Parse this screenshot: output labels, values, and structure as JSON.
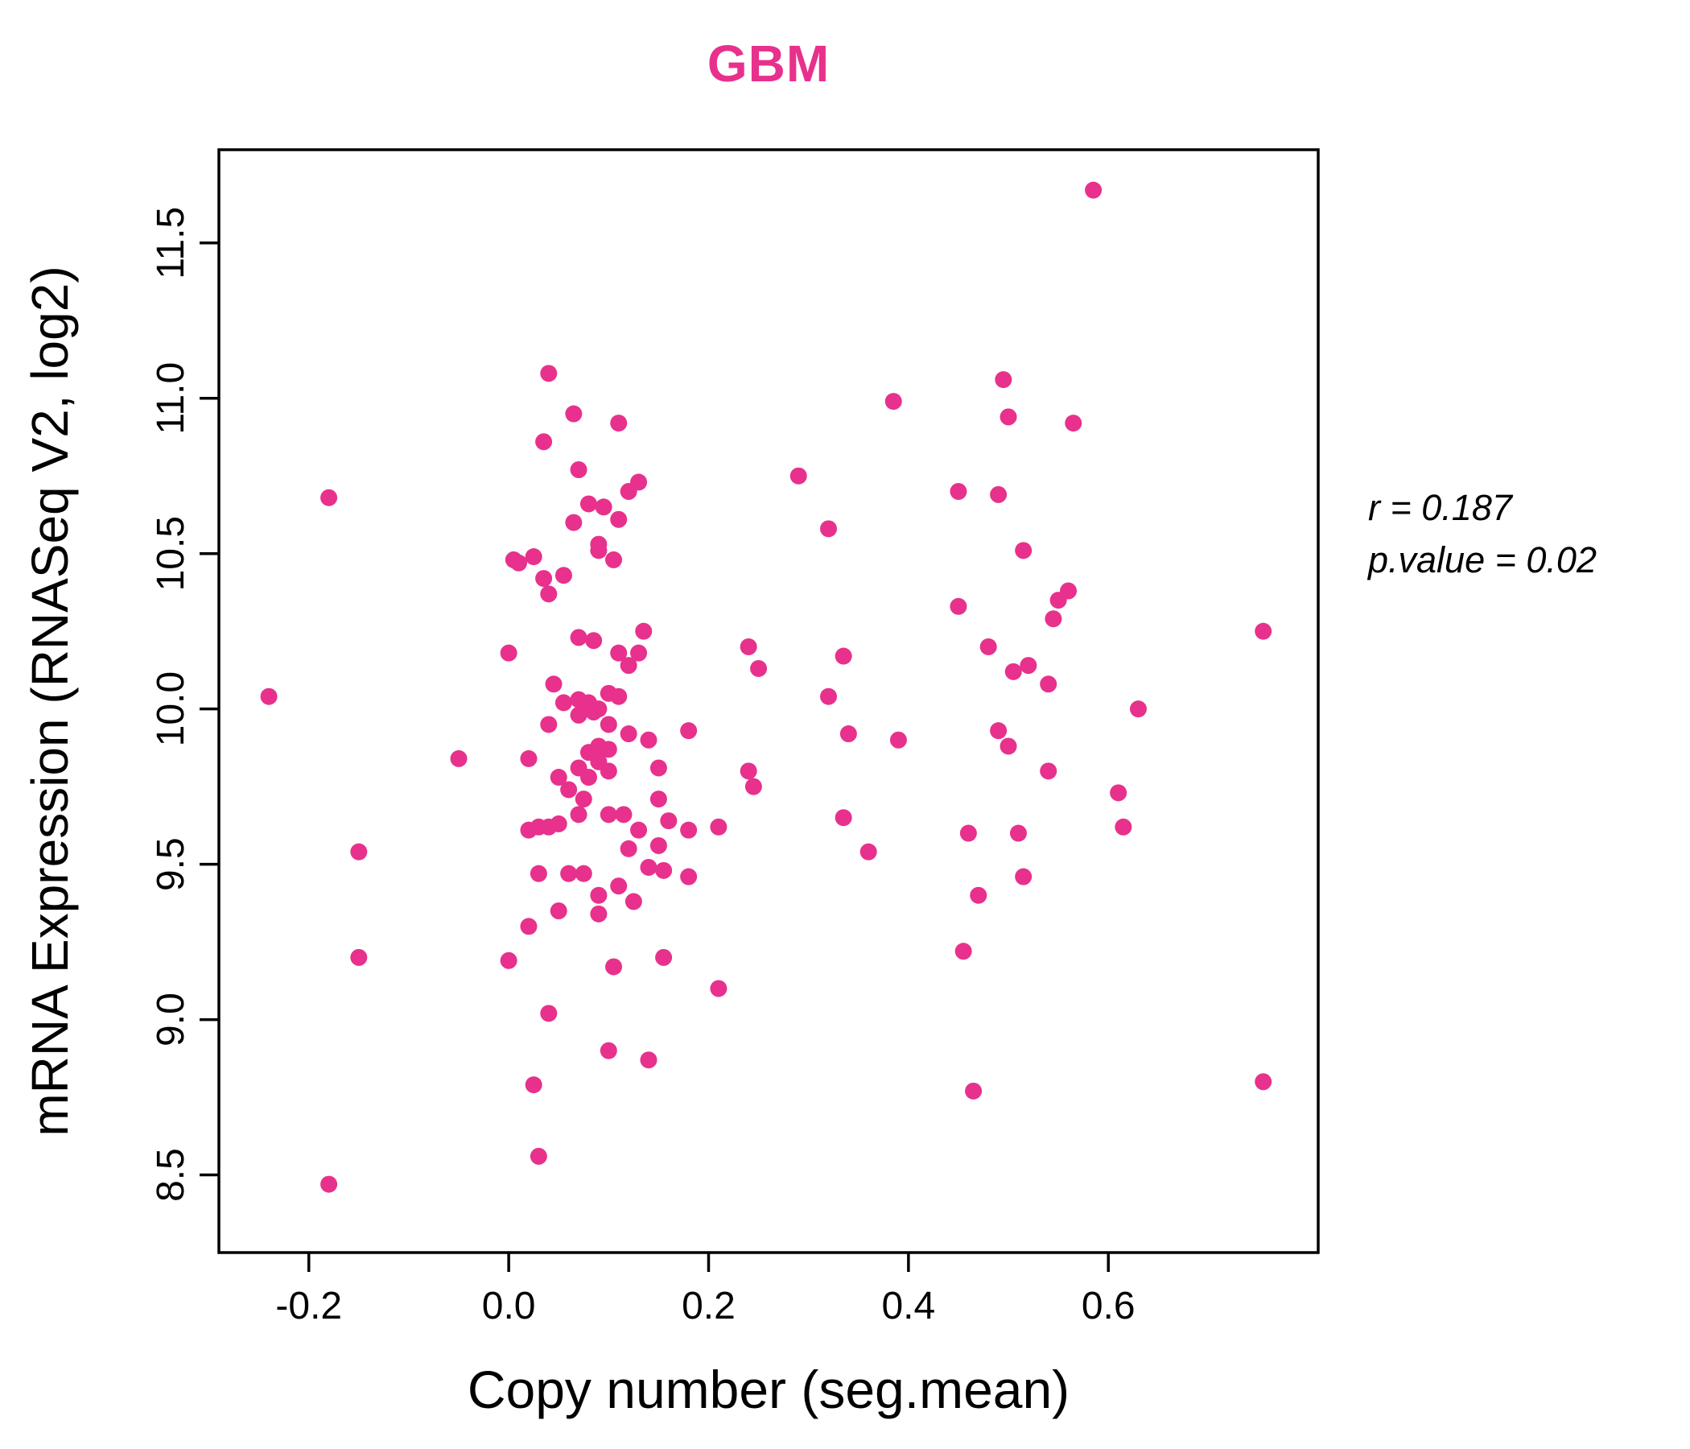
{
  "colors": {
    "accent": "#E7318C",
    "point": "#E7318C",
    "axis": "#000000"
  },
  "chart_data": {
    "type": "scatter",
    "title": "GBM",
    "xlabel": "Copy number (seg.mean)",
    "ylabel": "mRNA Expression (RNASeq V2, log2)",
    "xlim": [
      -0.29,
      0.81
    ],
    "ylim": [
      8.25,
      11.8
    ],
    "xtick_values": [
      -0.2,
      0.0,
      0.2,
      0.4,
      0.6
    ],
    "xtick_labels": [
      "-0.2",
      "0.0",
      "0.2",
      "0.4",
      "0.6"
    ],
    "ytick_values": [
      8.5,
      9.0,
      9.5,
      10.0,
      10.5,
      11.0,
      11.5
    ],
    "ytick_labels": [
      "8.5",
      "9.0",
      "9.5",
      "10.0",
      "10.5",
      "11.0",
      "11.5"
    ],
    "grid": false,
    "legend": "none",
    "annotation": [
      "r = 0.187",
      "p.value = 0.02"
    ],
    "points": [
      [
        -0.24,
        10.04
      ],
      [
        -0.18,
        10.68
      ],
      [
        -0.18,
        8.47
      ],
      [
        -0.15,
        9.54
      ],
      [
        -0.15,
        9.2
      ],
      [
        -0.05,
        9.84
      ],
      [
        0.0,
        9.19
      ],
      [
        0.0,
        10.18
      ],
      [
        0.005,
        10.48
      ],
      [
        0.01,
        10.47
      ],
      [
        0.02,
        9.84
      ],
      [
        0.02,
        9.61
      ],
      [
        0.02,
        9.3
      ],
      [
        0.025,
        8.79
      ],
      [
        0.025,
        10.49
      ],
      [
        0.03,
        9.47
      ],
      [
        0.03,
        9.62
      ],
      [
        0.03,
        8.56
      ],
      [
        0.035,
        10.86
      ],
      [
        0.035,
        10.42
      ],
      [
        0.04,
        11.08
      ],
      [
        0.04,
        10.37
      ],
      [
        0.04,
        9.95
      ],
      [
        0.04,
        9.62
      ],
      [
        0.04,
        9.02
      ],
      [
        0.045,
        10.08
      ],
      [
        0.05,
        9.78
      ],
      [
        0.05,
        9.35
      ],
      [
        0.05,
        9.63
      ],
      [
        0.055,
        10.43
      ],
      [
        0.055,
        10.02
      ],
      [
        0.06,
        9.74
      ],
      [
        0.06,
        9.47
      ],
      [
        0.065,
        10.6
      ],
      [
        0.065,
        10.95
      ],
      [
        0.07,
        10.77
      ],
      [
        0.07,
        10.23
      ],
      [
        0.07,
        10.03
      ],
      [
        0.07,
        9.98
      ],
      [
        0.07,
        9.81
      ],
      [
        0.07,
        9.66
      ],
      [
        0.075,
        9.71
      ],
      [
        0.075,
        9.47
      ],
      [
        0.08,
        10.66
      ],
      [
        0.08,
        10.02
      ],
      [
        0.08,
        9.86
      ],
      [
        0.08,
        9.78
      ],
      [
        0.085,
        10.22
      ],
      [
        0.085,
        9.99
      ],
      [
        0.09,
        10.53
      ],
      [
        0.09,
        10.51
      ],
      [
        0.09,
        10.0
      ],
      [
        0.09,
        9.88
      ],
      [
        0.09,
        9.83
      ],
      [
        0.09,
        9.4
      ],
      [
        0.09,
        9.34
      ],
      [
        0.095,
        10.65
      ],
      [
        0.1,
        10.05
      ],
      [
        0.1,
        9.95
      ],
      [
        0.1,
        9.87
      ],
      [
        0.1,
        9.8
      ],
      [
        0.1,
        9.66
      ],
      [
        0.1,
        8.9
      ],
      [
        0.105,
        10.48
      ],
      [
        0.105,
        9.17
      ],
      [
        0.11,
        10.92
      ],
      [
        0.11,
        10.61
      ],
      [
        0.11,
        10.18
      ],
      [
        0.11,
        10.04
      ],
      [
        0.11,
        9.43
      ],
      [
        0.115,
        9.66
      ],
      [
        0.12,
        10.7
      ],
      [
        0.12,
        10.14
      ],
      [
        0.12,
        9.92
      ],
      [
        0.12,
        9.55
      ],
      [
        0.125,
        9.38
      ],
      [
        0.13,
        10.73
      ],
      [
        0.13,
        10.18
      ],
      [
        0.13,
        9.61
      ],
      [
        0.135,
        10.25
      ],
      [
        0.14,
        9.9
      ],
      [
        0.14,
        9.49
      ],
      [
        0.14,
        8.87
      ],
      [
        0.15,
        9.81
      ],
      [
        0.15,
        9.71
      ],
      [
        0.15,
        9.56
      ],
      [
        0.155,
        9.48
      ],
      [
        0.155,
        9.2
      ],
      [
        0.16,
        9.64
      ],
      [
        0.18,
        9.93
      ],
      [
        0.18,
        9.61
      ],
      [
        0.18,
        9.46
      ],
      [
        0.21,
        9.1
      ],
      [
        0.21,
        9.62
      ],
      [
        0.24,
        10.2
      ],
      [
        0.24,
        9.8
      ],
      [
        0.245,
        9.75
      ],
      [
        0.25,
        10.13
      ],
      [
        0.29,
        10.75
      ],
      [
        0.32,
        10.58
      ],
      [
        0.32,
        10.04
      ],
      [
        0.335,
        10.17
      ],
      [
        0.335,
        9.65
      ],
      [
        0.34,
        9.92
      ],
      [
        0.36,
        9.54
      ],
      [
        0.385,
        10.99
      ],
      [
        0.39,
        9.9
      ],
      [
        0.45,
        10.7
      ],
      [
        0.45,
        10.33
      ],
      [
        0.455,
        9.22
      ],
      [
        0.46,
        9.6
      ],
      [
        0.465,
        8.77
      ],
      [
        0.47,
        9.4
      ],
      [
        0.48,
        10.2
      ],
      [
        0.49,
        10.69
      ],
      [
        0.49,
        9.93
      ],
      [
        0.495,
        11.06
      ],
      [
        0.5,
        10.94
      ],
      [
        0.5,
        9.88
      ],
      [
        0.505,
        10.12
      ],
      [
        0.51,
        9.6
      ],
      [
        0.515,
        10.51
      ],
      [
        0.515,
        9.46
      ],
      [
        0.52,
        10.14
      ],
      [
        0.54,
        10.08
      ],
      [
        0.54,
        9.8
      ],
      [
        0.545,
        10.29
      ],
      [
        0.55,
        10.35
      ],
      [
        0.56,
        10.38
      ],
      [
        0.565,
        10.92
      ],
      [
        0.585,
        11.67
      ],
      [
        0.61,
        9.73
      ],
      [
        0.615,
        9.62
      ],
      [
        0.63,
        10.0
      ],
      [
        0.755,
        10.25
      ],
      [
        0.755,
        8.8
      ]
    ]
  }
}
